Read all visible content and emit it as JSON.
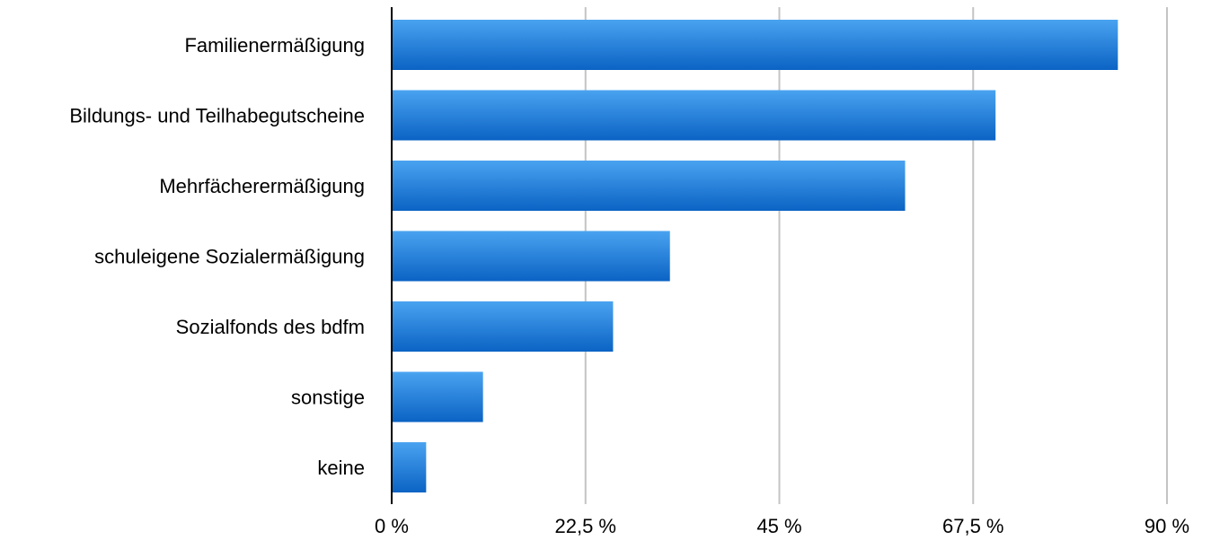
{
  "chart_data": {
    "type": "bar",
    "orientation": "horizontal",
    "title": "",
    "xlabel": "",
    "ylabel": "",
    "categories": [
      "Familienermäßigung",
      "Bildungs- und Teilhabegutscheine",
      "Mehrfächerermäßigung",
      "schuleigene Sozialermäßigung",
      "Sozialfonds des bdfm",
      "sonstige",
      "keine"
    ],
    "values": [
      84.3,
      70.1,
      59.6,
      32.3,
      25.7,
      10.6,
      4.0
    ],
    "value_unit": "%",
    "xlim": [
      0,
      90
    ],
    "x_ticks": [
      0,
      22.5,
      45,
      67.5,
      90
    ],
    "x_tick_labels": [
      "0 %",
      "22,5 %",
      "45 %",
      "67,5 %",
      "90 %"
    ],
    "grid": "vertical",
    "legend": "none",
    "colors": {
      "bar_top": "#4aa3f0",
      "bar_bottom": "#0b63c4",
      "grid": "#c4c4c4",
      "axis": "#000000"
    }
  }
}
